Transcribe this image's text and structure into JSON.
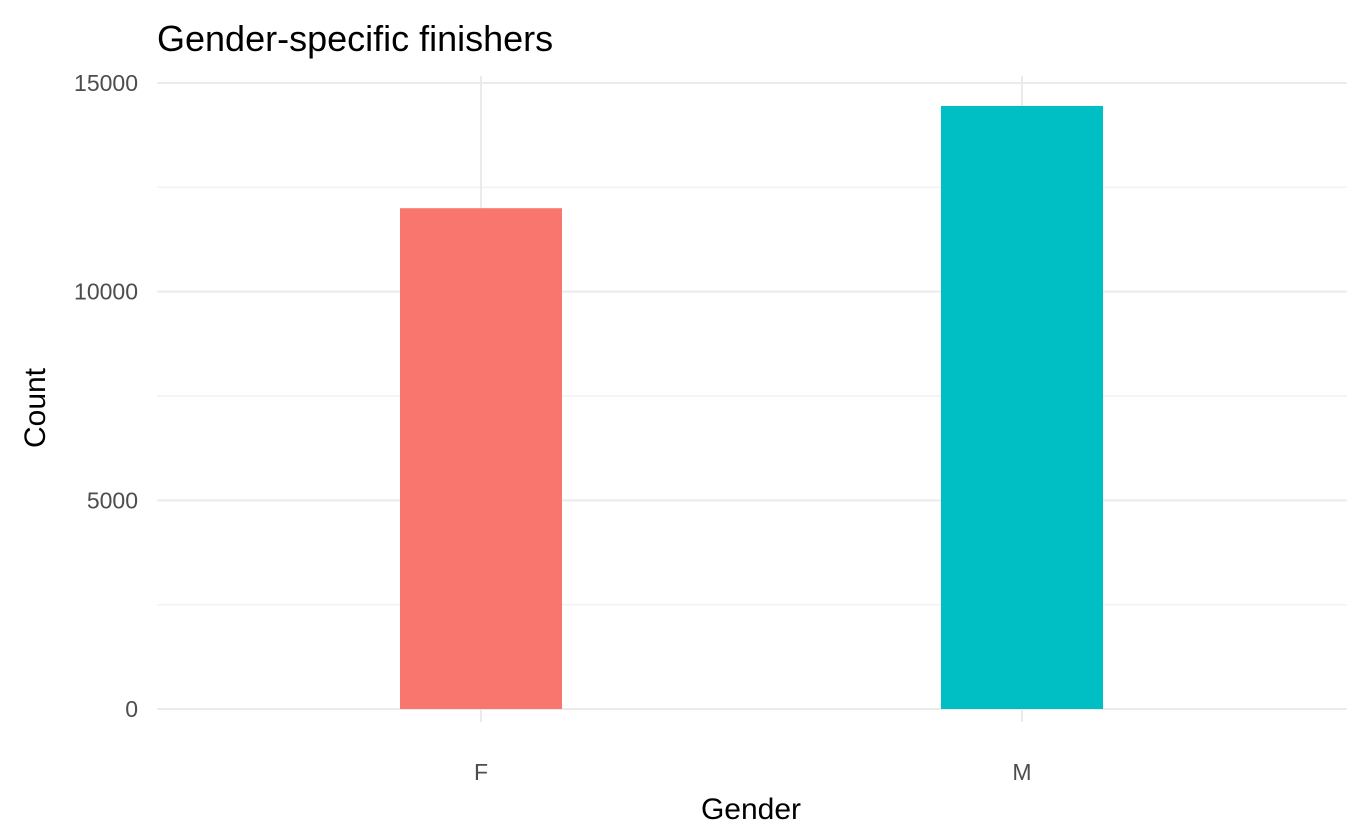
{
  "chart_data": {
    "type": "bar",
    "title": "Gender-specific finishers",
    "xlabel": "Gender",
    "ylabel": "Count",
    "categories": [
      "F",
      "M"
    ],
    "values": [
      12000,
      14450
    ],
    "colors": [
      "#F8766D",
      "#00BFC4"
    ],
    "ylim": [
      0,
      15000
    ],
    "yticks": [
      0,
      5000,
      10000,
      15000
    ],
    "ytick_labels": [
      "0",
      "5000",
      "10000",
      "15000"
    ],
    "grid": true,
    "legend": false
  }
}
